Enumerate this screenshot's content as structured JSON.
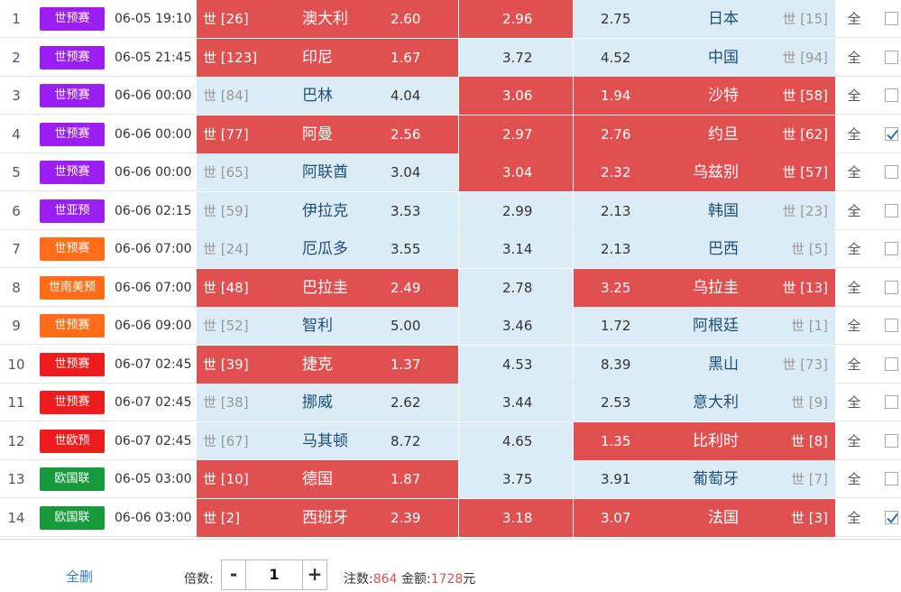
{
  "colors": {
    "selected_red": "#e05050",
    "unselected_blue": "#dcecf7",
    "purple": "#9b1ff0",
    "orange": "#ff6d1a",
    "red": "#ee1c1c",
    "green": "#169a3c"
  },
  "rows": [
    {
      "num": "1",
      "league": "世预赛",
      "league_color": "#9b1ff0",
      "time": "06-05 19:10",
      "home_rank": "世 [26]",
      "home": "澳大利",
      "home_odd": "2.60",
      "draw_odd": "2.96",
      "away_odd": "2.75",
      "away": "日本",
      "away_rank": "世 [15]",
      "all": "全",
      "sel": [
        true,
        true,
        false
      ],
      "checked": false
    },
    {
      "num": "2",
      "league": "世预赛",
      "league_color": "#9b1ff0",
      "time": "06-05 21:45",
      "home_rank": "世 [123]",
      "home": "印尼",
      "home_odd": "1.67",
      "draw_odd": "3.72",
      "away_odd": "4.52",
      "away": "中国",
      "away_rank": "世 [94]",
      "all": "全",
      "sel": [
        true,
        false,
        false
      ],
      "checked": false
    },
    {
      "num": "3",
      "league": "世预赛",
      "league_color": "#9b1ff0",
      "time": "06-06 00:00",
      "home_rank": "世 [84]",
      "home": "巴林",
      "home_odd": "4.04",
      "draw_odd": "3.06",
      "away_odd": "1.94",
      "away": "沙特",
      "away_rank": "世 [58]",
      "all": "全",
      "sel": [
        false,
        true,
        true
      ],
      "checked": false
    },
    {
      "num": "4",
      "league": "世预赛",
      "league_color": "#9b1ff0",
      "time": "06-06 00:00",
      "home_rank": "世 [77]",
      "home": "阿曼",
      "home_odd": "2.56",
      "draw_odd": "2.97",
      "away_odd": "2.76",
      "away": "约旦",
      "away_rank": "世 [62]",
      "all": "全",
      "sel": [
        true,
        true,
        true
      ],
      "checked": true
    },
    {
      "num": "5",
      "league": "世预赛",
      "league_color": "#9b1ff0",
      "time": "06-06 00:00",
      "home_rank": "世 [65]",
      "home": "阿联酋",
      "home_odd": "3.04",
      "draw_odd": "3.04",
      "away_odd": "2.32",
      "away": "乌兹别",
      "away_rank": "世 [57]",
      "all": "全",
      "sel": [
        false,
        true,
        true
      ],
      "checked": false
    },
    {
      "num": "6",
      "league": "世亚预",
      "league_color": "#9b1ff0",
      "time": "06-06 02:15",
      "home_rank": "世 [59]",
      "home": "伊拉克",
      "home_odd": "3.53",
      "draw_odd": "2.99",
      "away_odd": "2.13",
      "away": "韩国",
      "away_rank": "世 [23]",
      "all": "全",
      "sel": [
        false,
        false,
        false
      ],
      "checked": false
    },
    {
      "num": "7",
      "league": "世预赛",
      "league_color": "#ff6d1a",
      "time": "06-06 07:00",
      "home_rank": "世 [24]",
      "home": "厄瓜多",
      "home_odd": "3.55",
      "draw_odd": "3.14",
      "away_odd": "2.13",
      "away": "巴西",
      "away_rank": "世 [5]",
      "all": "全",
      "sel": [
        false,
        false,
        false
      ],
      "checked": false
    },
    {
      "num": "8",
      "league": "世南美预",
      "league_color": "#ff6d1a",
      "time": "06-06 07:00",
      "home_rank": "世 [48]",
      "home": "巴拉圭",
      "home_odd": "2.49",
      "draw_odd": "2.78",
      "away_odd": "3.25",
      "away": "乌拉圭",
      "away_rank": "世 [13]",
      "all": "全",
      "sel": [
        true,
        false,
        true
      ],
      "checked": false
    },
    {
      "num": "9",
      "league": "世预赛",
      "league_color": "#ff6d1a",
      "time": "06-06 09:00",
      "home_rank": "世 [52]",
      "home": "智利",
      "home_odd": "5.00",
      "draw_odd": "3.46",
      "away_odd": "1.72",
      "away": "阿根廷",
      "away_rank": "世 [1]",
      "all": "全",
      "sel": [
        false,
        false,
        false
      ],
      "checked": false
    },
    {
      "num": "10",
      "league": "世预赛",
      "league_color": "#ee1c1c",
      "time": "06-07 02:45",
      "home_rank": "世 [39]",
      "home": "捷克",
      "home_odd": "1.37",
      "draw_odd": "4.53",
      "away_odd": "8.39",
      "away": "黑山",
      "away_rank": "世 [73]",
      "all": "全",
      "sel": [
        true,
        false,
        false
      ],
      "checked": false
    },
    {
      "num": "11",
      "league": "世预赛",
      "league_color": "#ee1c1c",
      "time": "06-07 02:45",
      "home_rank": "世 [38]",
      "home": "挪威",
      "home_odd": "2.62",
      "draw_odd": "3.44",
      "away_odd": "2.53",
      "away": "意大利",
      "away_rank": "世 [9]",
      "all": "全",
      "sel": [
        false,
        false,
        false
      ],
      "checked": false
    },
    {
      "num": "12",
      "league": "世欧预",
      "league_color": "#ee1c1c",
      "time": "06-07 02:45",
      "home_rank": "世 [67]",
      "home": "马其顿",
      "home_odd": "8.72",
      "draw_odd": "4.65",
      "away_odd": "1.35",
      "away": "比利时",
      "away_rank": "世 [8]",
      "all": "全",
      "sel": [
        false,
        false,
        true
      ],
      "checked": false
    },
    {
      "num": "13",
      "league": "欧国联",
      "league_color": "#169a3c",
      "time": "06-05 03:00",
      "home_rank": "世 [10]",
      "home": "德国",
      "home_odd": "1.87",
      "draw_odd": "3.75",
      "away_odd": "3.91",
      "away": "葡萄牙",
      "away_rank": "世 [7]",
      "all": "全",
      "sel": [
        true,
        false,
        false
      ],
      "checked": false
    },
    {
      "num": "14",
      "league": "欧国联",
      "league_color": "#169a3c",
      "time": "06-06 03:00",
      "home_rank": "世 [2]",
      "home": "西班牙",
      "home_odd": "2.39",
      "draw_odd": "3.18",
      "away_odd": "3.07",
      "away": "法国",
      "away_rank": "世 [3]",
      "all": "全",
      "sel": [
        true,
        true,
        true
      ],
      "checked": true
    }
  ],
  "footer": {
    "select_all": "全删",
    "multiplier_label": "倍数:",
    "minus": "-",
    "multiplier_value": "1",
    "plus": "+",
    "bets_label": "注数:",
    "bets_value": "864",
    "amount_label": "金额:",
    "amount_value": "1728",
    "amount_unit": "元"
  }
}
